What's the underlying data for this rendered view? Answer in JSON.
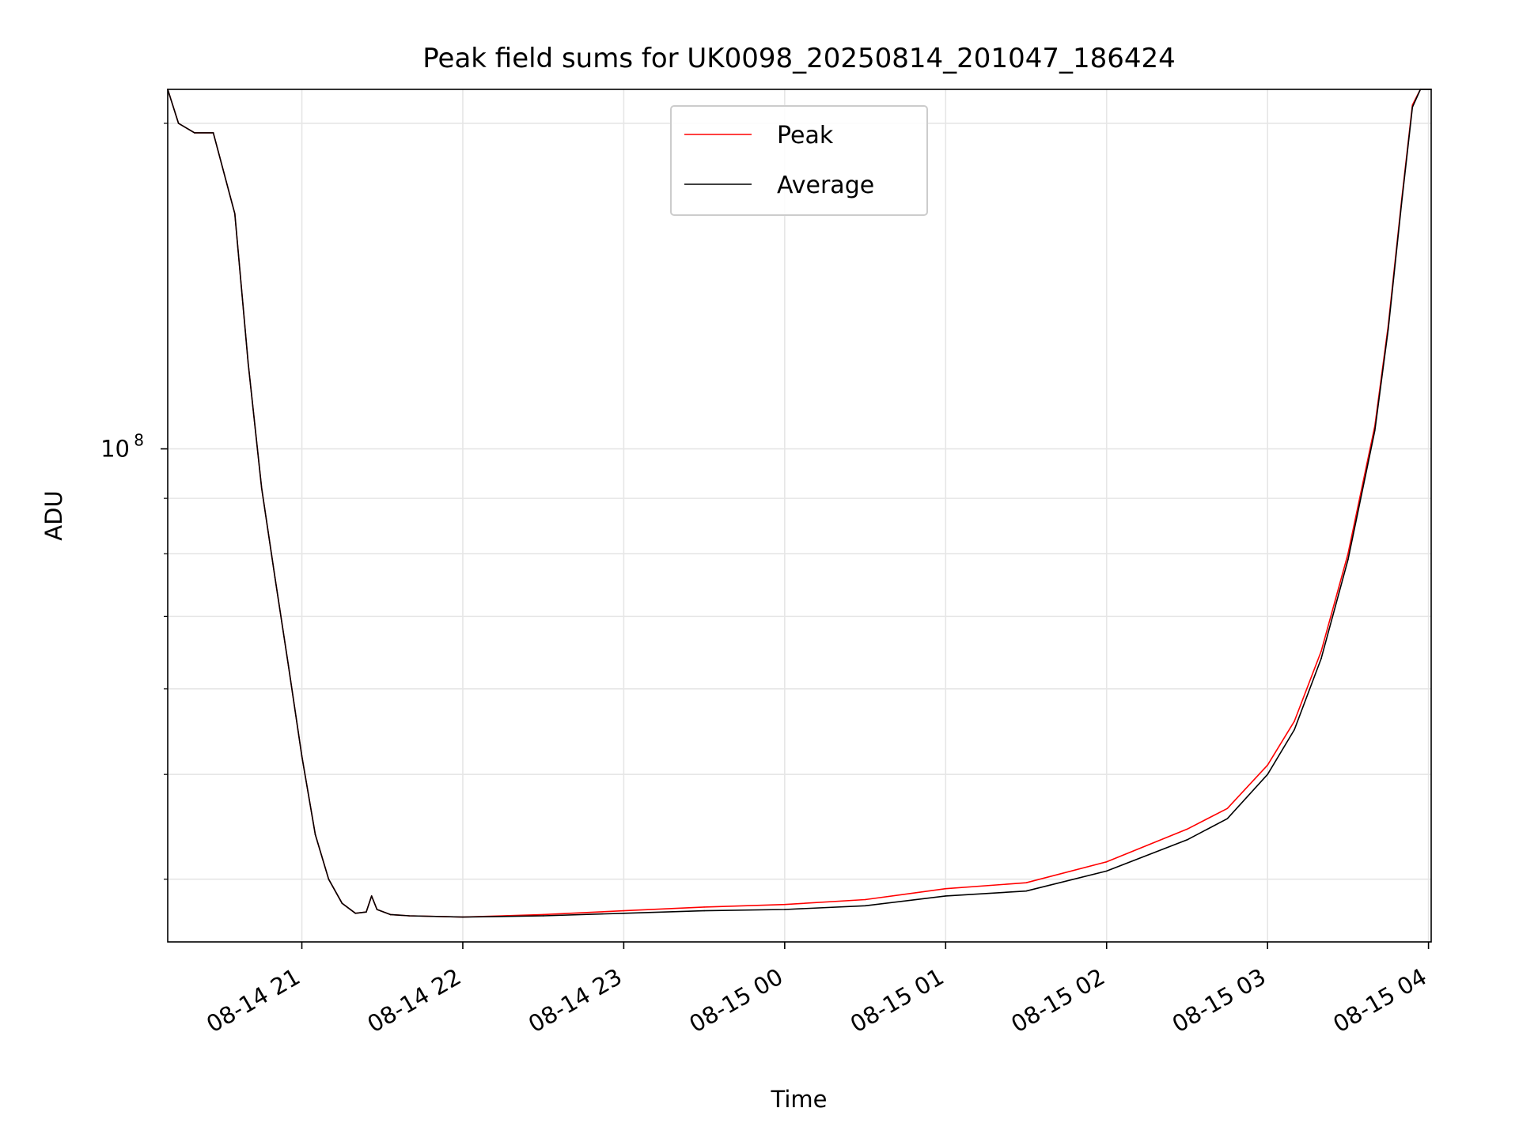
{
  "chart_data": {
    "type": "line",
    "title": "Peak field sums for UK0098_20250814_201047_186424",
    "xlabel": "Time",
    "ylabel": "ADU",
    "yscale": "log",
    "grid": true,
    "legend_position": "upper center",
    "xlim": [
      "2025-08-14 20:10",
      "2025-08-15 04:01"
    ],
    "ylim": [
      35000000,
      215000000
    ],
    "x_ticks": [
      {
        "t": "2025-08-14 21:00",
        "label": "08-14 21"
      },
      {
        "t": "2025-08-14 22:00",
        "label": "08-14 22"
      },
      {
        "t": "2025-08-14 23:00",
        "label": "08-14 23"
      },
      {
        "t": "2025-08-15 00:00",
        "label": "08-15 00"
      },
      {
        "t": "2025-08-15 01:00",
        "label": "08-15 01"
      },
      {
        "t": "2025-08-15 02:00",
        "label": "08-15 02"
      },
      {
        "t": "2025-08-15 03:00",
        "label": "08-15 03"
      },
      {
        "t": "2025-08-15 04:00",
        "label": "08-15 04"
      }
    ],
    "y_major_ticks": [
      {
        "value": 100000000,
        "base": "10",
        "exp": "8"
      }
    ],
    "y_minor_ticks": [
      40000000,
      50000000,
      60000000,
      70000000,
      80000000,
      90000000,
      200000000
    ],
    "series": [
      {
        "name": "Peak",
        "color": "#ff0000",
        "points": [
          [
            "2025-08-14 20:10",
            215000000
          ],
          [
            "2025-08-14 20:14",
            200000000
          ],
          [
            "2025-08-14 20:20",
            196000000
          ],
          [
            "2025-08-14 20:27",
            196000000
          ],
          [
            "2025-08-14 20:35",
            165000000
          ],
          [
            "2025-08-14 20:40",
            120000000
          ],
          [
            "2025-08-14 20:45",
            92000000
          ],
          [
            "2025-08-14 20:50",
            76000000
          ],
          [
            "2025-08-14 20:55",
            63000000
          ],
          [
            "2025-08-14 21:00",
            52000000
          ],
          [
            "2025-08-14 21:05",
            44000000
          ],
          [
            "2025-08-14 21:10",
            40000000
          ],
          [
            "2025-08-14 21:15",
            38000000
          ],
          [
            "2025-08-14 21:20",
            37200000
          ],
          [
            "2025-08-14 21:24",
            37300000
          ],
          [
            "2025-08-14 21:26",
            38600000
          ],
          [
            "2025-08-14 21:28",
            37500000
          ],
          [
            "2025-08-14 21:33",
            37100000
          ],
          [
            "2025-08-14 21:40",
            37000000
          ],
          [
            "2025-08-14 22:00",
            36900000
          ],
          [
            "2025-08-14 22:30",
            37100000
          ],
          [
            "2025-08-14 23:00",
            37400000
          ],
          [
            "2025-08-14 23:30",
            37700000
          ],
          [
            "2025-08-15 00:00",
            37900000
          ],
          [
            "2025-08-15 00:30",
            38300000
          ],
          [
            "2025-08-15 01:00",
            39200000
          ],
          [
            "2025-08-15 01:30",
            39700000
          ],
          [
            "2025-08-15 02:00",
            41500000
          ],
          [
            "2025-08-15 02:30",
            44500000
          ],
          [
            "2025-08-15 02:45",
            46500000
          ],
          [
            "2025-08-15 03:00",
            51000000
          ],
          [
            "2025-08-15 03:10",
            56000000
          ],
          [
            "2025-08-15 03:20",
            65000000
          ],
          [
            "2025-08-15 03:30",
            80000000
          ],
          [
            "2025-08-15 03:40",
            105000000
          ],
          [
            "2025-08-15 03:45",
            130000000
          ],
          [
            "2025-08-15 03:50",
            170000000
          ],
          [
            "2025-08-15 03:54",
            208000000
          ],
          [
            "2025-08-15 03:57",
            215000000
          ],
          [
            "2025-08-15 04:01",
            215000000
          ]
        ]
      },
      {
        "name": "Average",
        "color": "#000000",
        "points": [
          [
            "2025-08-14 20:10",
            215000000
          ],
          [
            "2025-08-14 20:14",
            200000000
          ],
          [
            "2025-08-14 20:20",
            196000000
          ],
          [
            "2025-08-14 20:27",
            196000000
          ],
          [
            "2025-08-14 20:35",
            165000000
          ],
          [
            "2025-08-14 20:40",
            120000000
          ],
          [
            "2025-08-14 20:45",
            92000000
          ],
          [
            "2025-08-14 20:50",
            76000000
          ],
          [
            "2025-08-14 20:55",
            63000000
          ],
          [
            "2025-08-14 21:00",
            52000000
          ],
          [
            "2025-08-14 21:05",
            44000000
          ],
          [
            "2025-08-14 21:10",
            40000000
          ],
          [
            "2025-08-14 21:15",
            38000000
          ],
          [
            "2025-08-14 21:20",
            37200000
          ],
          [
            "2025-08-14 21:24",
            37300000
          ],
          [
            "2025-08-14 21:26",
            38600000
          ],
          [
            "2025-08-14 21:28",
            37500000
          ],
          [
            "2025-08-14 21:33",
            37100000
          ],
          [
            "2025-08-14 21:40",
            37000000
          ],
          [
            "2025-08-14 22:00",
            36900000
          ],
          [
            "2025-08-14 22:30",
            37000000
          ],
          [
            "2025-08-14 23:00",
            37200000
          ],
          [
            "2025-08-14 23:30",
            37400000
          ],
          [
            "2025-08-15 00:00",
            37500000
          ],
          [
            "2025-08-15 00:30",
            37800000
          ],
          [
            "2025-08-15 01:00",
            38600000
          ],
          [
            "2025-08-15 01:30",
            39000000
          ],
          [
            "2025-08-15 02:00",
            40700000
          ],
          [
            "2025-08-15 02:30",
            43500000
          ],
          [
            "2025-08-15 02:45",
            45500000
          ],
          [
            "2025-08-15 03:00",
            50000000
          ],
          [
            "2025-08-15 03:10",
            55000000
          ],
          [
            "2025-08-15 03:20",
            64000000
          ],
          [
            "2025-08-15 03:30",
            79000000
          ],
          [
            "2025-08-15 03:40",
            104000000
          ],
          [
            "2025-08-15 03:45",
            129000000
          ],
          [
            "2025-08-15 03:50",
            169000000
          ],
          [
            "2025-08-15 03:54",
            207000000
          ],
          [
            "2025-08-15 03:57",
            215000000
          ],
          [
            "2025-08-15 04:01",
            215000000
          ]
        ]
      }
    ]
  }
}
